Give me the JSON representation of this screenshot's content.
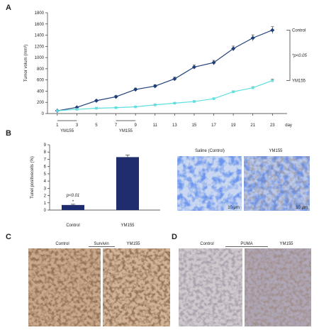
{
  "panels": {
    "A": {
      "letter": "A"
    },
    "B": {
      "letter": "B"
    },
    "C": {
      "letter": "C"
    },
    "D": {
      "letter": "D"
    }
  },
  "chart_data": [
    {
      "type": "line",
      "panel": "A",
      "ylabel": "Tumor volum (mm³)",
      "xlabel": "",
      "x_unit": "day",
      "x": [
        1,
        3,
        5,
        7,
        9,
        11,
        13,
        15,
        17,
        19,
        21,
        23
      ],
      "x_ticks": [
        "1",
        "3",
        "5",
        "7",
        "9",
        "11",
        "13",
        "15",
        "17",
        "19",
        "21",
        "23"
      ],
      "ylim": [
        0,
        1800
      ],
      "y_ticks": [
        0,
        200,
        400,
        600,
        800,
        1000,
        1200,
        1400,
        1600,
        1800
      ],
      "series": [
        {
          "name": "Control",
          "color": "#1f3f7a",
          "values": [
            50,
            110,
            230,
            300,
            430,
            490,
            620,
            830,
            910,
            1160,
            1350,
            1490
          ],
          "errors": [
            8,
            10,
            15,
            20,
            25,
            25,
            30,
            35,
            40,
            45,
            55,
            60
          ]
        },
        {
          "name": "YM155",
          "color": "#5fe0e0",
          "values": [
            50,
            75,
            95,
            105,
            120,
            155,
            185,
            215,
            265,
            390,
            460,
            590
          ],
          "errors": [
            5,
            5,
            8,
            8,
            8,
            10,
            10,
            12,
            15,
            15,
            20,
            25
          ]
        }
      ],
      "treatment_label": "YM155",
      "significance": "*p<0.05"
    },
    {
      "type": "bar",
      "panel": "B",
      "ylabel": "Tunel positivecells (%)",
      "categories": [
        "Control",
        "YM155"
      ],
      "values": [
        0.7,
        7.3
      ],
      "errors": [
        0.1,
        0.3
      ],
      "ylim": [
        0,
        9
      ],
      "y_ticks": [
        0,
        1,
        2,
        3,
        4,
        5,
        6,
        7,
        8,
        9
      ],
      "color": "#1f2c6e",
      "significance": "p<0.01"
    }
  ],
  "micrographs": {
    "B": {
      "titles": [
        "Saline (Control)",
        "YM155"
      ],
      "scale": "10 μm"
    },
    "C": {
      "labels": [
        "Control",
        "Survivin",
        "YM155"
      ]
    },
    "D": {
      "labels": [
        "Control",
        "PUMA",
        "YM155"
      ]
    }
  }
}
